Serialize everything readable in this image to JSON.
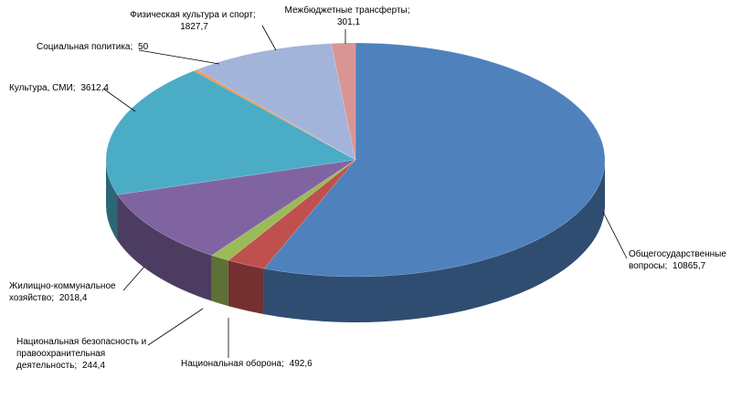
{
  "chart_data": {
    "type": "pie",
    "categories": [
      "Общегосударственные вопросы;",
      "Национальная оборона;",
      "Национальная безопасность и правоохранительная деятельность;",
      "Жилищно-коммунальное хозяйство;",
      "Культура, СМИ;",
      "Социальная политика;",
      "Физическая культура и спорт;",
      "Межбюджетные трансферты;"
    ],
    "values": [
      10865.7,
      492.6,
      244.4,
      2018.4,
      3612.4,
      50,
      1827.7,
      301.1
    ],
    "value_labels": [
      "10865,7",
      "492,6",
      "244,4",
      "2018,4",
      "3612,4",
      "50",
      "1827,7",
      "301,1"
    ],
    "colors": [
      "#4f81bd",
      "#c0504d",
      "#9bbb59",
      "#8064a2",
      "#4bacc6",
      "#f79646",
      "#a3b4db",
      "#d99594"
    ]
  }
}
